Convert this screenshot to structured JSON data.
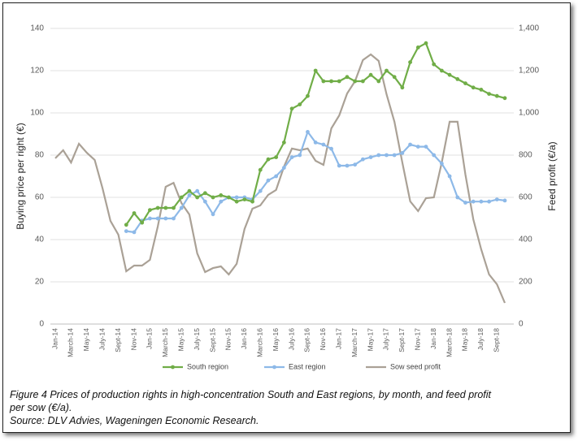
{
  "chart_data": {
    "type": "line",
    "caption": "Figure 4 Prices of production rights in high-concentration South and East regions, by month, and feed profit per sow (€/a).",
    "source": "Source: DLV Advies, Wageningen Economic Research.",
    "ylabel": "Buying price per right (€)",
    "y2label": "Feed profit (€/a)",
    "categories": [
      "Jan-14",
      null,
      "March-14",
      null,
      "May-14",
      null,
      "July-14",
      null,
      "Sept-14",
      null,
      "Nov-14",
      null,
      "Jan-15",
      null,
      "March-15",
      null,
      "May-15",
      null,
      "July-15",
      null,
      "Sept-15",
      null,
      "Nov-15",
      null,
      "Jan-16",
      null,
      "March-16",
      null,
      "May-16",
      null,
      "July-16",
      null,
      "Sept-16",
      null,
      "Nov-16",
      null,
      "Jan-17",
      null,
      "March-17",
      null,
      "May-17",
      null,
      "July-17",
      null,
      "Sept-17",
      null,
      "Nov-17",
      null,
      "Jan-18",
      null,
      "March-18",
      null,
      "May-18",
      null,
      "July-18",
      null,
      "Sept-18",
      null
    ],
    "ylim": [
      0,
      140
    ],
    "yticks": [
      0,
      20,
      40,
      60,
      80,
      100,
      120,
      140
    ],
    "y2lim": [
      0,
      1400
    ],
    "y2ticks": [
      0,
      200,
      400,
      600,
      800,
      {
        "value": 1000,
        "label": "1,000"
      },
      {
        "value": 1200,
        "label": "1,200"
      },
      {
        "value": 1400,
        "label": "1,400"
      }
    ],
    "grid": true,
    "series": [
      {
        "name": "South region",
        "color": "#70ad47",
        "markers": true,
        "values": [
          null,
          null,
          null,
          null,
          null,
          null,
          null,
          null,
          null,
          47,
          52.5,
          48,
          54,
          55,
          55,
          55,
          60,
          63,
          60,
          62,
          60,
          61,
          60,
          58,
          59,
          58,
          73,
          78,
          79,
          86,
          102,
          104,
          108,
          120,
          115,
          115,
          115,
          117,
          115,
          115,
          118,
          115,
          120,
          117,
          112,
          124,
          131,
          133,
          123,
          120,
          118,
          116,
          114,
          112,
          111,
          109,
          108,
          107
        ]
      },
      {
        "name": "East region",
        "color": "#8db9e8",
        "markers": true,
        "values": [
          null,
          null,
          null,
          null,
          null,
          null,
          null,
          null,
          null,
          44,
          43.5,
          49,
          50,
          50,
          50,
          50,
          55,
          61,
          63,
          58,
          52,
          58,
          60,
          60,
          60,
          59,
          63,
          68,
          70,
          74,
          79,
          80,
          91,
          86,
          85,
          83,
          75,
          75,
          75.5,
          78,
          79,
          80,
          80,
          80,
          81,
          85,
          84,
          84,
          80,
          76,
          70,
          60,
          57.5,
          58,
          58,
          58,
          59,
          58.5
        ]
      },
      {
        "name": "Sow seed profit",
        "color": "#aaa196",
        "markers": false,
        "axis": "y2",
        "values": [
          785,
          823,
          765,
          854,
          811,
          777,
          642,
          488,
          423,
          250,
          277,
          277,
          304,
          462,
          650,
          669,
          573,
          519,
          335,
          246,
          265,
          273,
          235,
          285,
          450,
          546,
          562,
          612,
          635,
          746,
          831,
          823,
          831,
          773,
          754,
          927,
          988,
          1092,
          1150,
          1250,
          1277,
          1246,
          1088,
          958,
          765,
          581,
          535,
          596,
          600,
          765,
          958,
          958,
          708,
          496,
          354,
          235,
          188,
          100
        ]
      }
    ]
  }
}
